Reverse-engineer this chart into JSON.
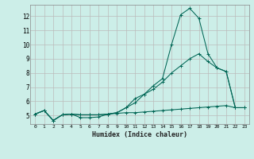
{
  "xlabel": "Humidex (Indice chaleur)",
  "bg_color": "#cceee8",
  "grid_color": "#bbbbbb",
  "line_color": "#006655",
  "xlim": [
    -0.5,
    23.5
  ],
  "ylim": [
    4.4,
    12.8
  ],
  "yticks": [
    5,
    6,
    7,
    8,
    9,
    10,
    11,
    12
  ],
  "xticks": [
    0,
    1,
    2,
    3,
    4,
    5,
    6,
    7,
    8,
    9,
    10,
    11,
    12,
    13,
    14,
    15,
    16,
    17,
    18,
    19,
    20,
    21,
    22,
    23
  ],
  "line1_x": [
    0,
    1,
    2,
    3,
    4,
    5,
    6,
    7,
    8,
    9,
    10,
    11,
    12,
    13,
    14,
    15,
    16,
    17,
    18,
    19,
    20,
    21,
    22,
    23
  ],
  "line1_y": [
    5.1,
    5.35,
    4.65,
    5.05,
    5.1,
    4.85,
    4.85,
    4.9,
    5.1,
    5.15,
    5.2,
    5.2,
    5.25,
    5.3,
    5.35,
    5.4,
    5.45,
    5.5,
    5.55,
    5.6,
    5.65,
    5.7,
    5.55,
    5.55
  ],
  "line2_x": [
    0,
    1,
    2,
    3,
    4,
    5,
    6,
    7,
    8,
    9,
    10,
    11,
    12,
    13,
    14,
    15,
    16,
    17,
    18,
    19,
    20,
    21,
    22,
    23
  ],
  "line2_y": [
    5.1,
    5.35,
    4.65,
    5.05,
    5.1,
    5.05,
    5.05,
    5.05,
    5.1,
    5.2,
    5.55,
    6.2,
    6.5,
    6.85,
    7.35,
    8.0,
    8.5,
    9.0,
    9.35,
    8.8,
    8.35,
    8.1,
    5.55,
    5.55
  ],
  "line3_x": [
    0,
    1,
    2,
    3,
    4,
    5,
    6,
    7,
    8,
    9,
    10,
    11,
    12,
    13,
    14,
    15,
    16,
    17,
    18,
    19,
    20,
    21,
    22,
    23
  ],
  "line3_y": [
    5.1,
    5.35,
    4.65,
    5.05,
    5.1,
    5.05,
    5.05,
    5.05,
    5.1,
    5.2,
    5.55,
    5.9,
    6.5,
    7.1,
    7.6,
    10.0,
    12.1,
    12.55,
    11.85,
    9.35,
    8.35,
    8.1,
    5.55,
    5.55
  ]
}
